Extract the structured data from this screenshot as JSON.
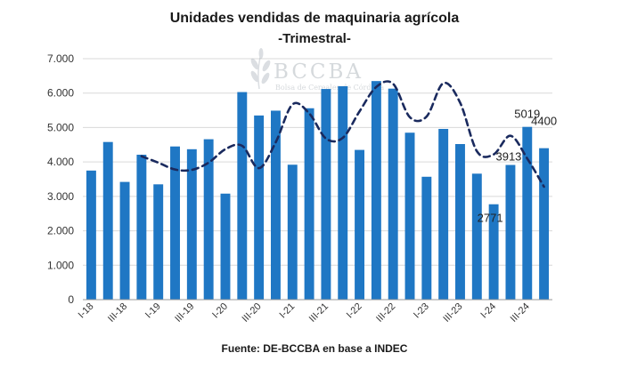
{
  "chart_data": {
    "type": "bar",
    "title": "Unidades vendidas de maquinaria agrícola",
    "subtitle": "-Trimestral-",
    "source": "Fuente: DE-BCCBA en base a INDEC",
    "watermark": {
      "brand": "BCCBA",
      "tagline": "Bolsa de Cereales de Córdoba"
    },
    "ylim": [
      0,
      7000
    ],
    "yticks": [
      {
        "value": 0,
        "label": "0"
      },
      {
        "value": 1000,
        "label": "1.000"
      },
      {
        "value": 2000,
        "label": "2.000"
      },
      {
        "value": 3000,
        "label": "3.000"
      },
      {
        "value": 4000,
        "label": "4.000"
      },
      {
        "value": 5000,
        "label": "5.000"
      },
      {
        "value": 6000,
        "label": "6.000"
      },
      {
        "value": 7000,
        "label": "7.000"
      }
    ],
    "categories": [
      "I-18",
      "II-18",
      "III-18",
      "IV-18",
      "I-19",
      "II-19",
      "III-19",
      "IV-19",
      "I-20",
      "II-20",
      "III-20",
      "IV-20",
      "I-21",
      "II-21",
      "III-21",
      "IV-21",
      "I-22",
      "II-22",
      "III-22",
      "IV-22",
      "I-23",
      "II-23",
      "III-23",
      "IV-23",
      "I-24",
      "II-24",
      "III-24",
      "IV-24"
    ],
    "tick_labels": [
      "I-18",
      "III-18",
      "I-19",
      "III-19",
      "I-20",
      "III-20",
      "I-21",
      "III-21",
      "I-22",
      "III-22",
      "I-23",
      "III-23",
      "I-24",
      "III-24"
    ],
    "series": [
      {
        "type": "bar",
        "color": "#1f77c4",
        "values": [
          3750,
          4580,
          3420,
          4210,
          3350,
          4450,
          4370,
          4660,
          3080,
          6030,
          5350,
          5490,
          3920,
          5560,
          6120,
          6200,
          4350,
          6350,
          6130,
          4850,
          3570,
          4960,
          4520,
          3660,
          2771,
          3913,
          5019,
          4400
        ]
      },
      {
        "type": "line",
        "style": "dashed",
        "color": "#1a2a5e",
        "values": [
          null,
          null,
          null,
          4165,
          3980,
          3780,
          3770,
          3980,
          4370,
          4470,
          3820,
          4570,
          5670,
          5410,
          4680,
          4700,
          5470,
          6180,
          6270,
          5300,
          5320,
          6290,
          5720,
          4310,
          4220,
          4760,
          4100,
          3280
        ]
      }
    ],
    "data_labels": [
      {
        "index": 24,
        "text": "2771"
      },
      {
        "index": 25,
        "text": "3913"
      },
      {
        "index": 26,
        "text": "5019"
      },
      {
        "index": 27,
        "text": "4400"
      }
    ]
  }
}
